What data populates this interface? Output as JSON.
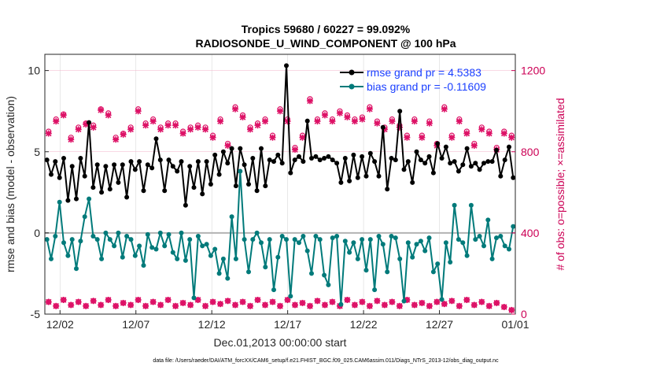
{
  "chart_data": {
    "type": "line",
    "title_line1": "Tropics 59680 / 60227 = 99.092%",
    "title_line2": "RADIOSONDE_U_WIND_COMPONENT @ 100 hPa",
    "xlabel": "Dec.01,2013 00:00:00 start",
    "ylabel": "rmse and bias (model - observation)",
    "ylabel_right": "# of obs: o=possible; ×=assimilated",
    "footer": "data file: /Users/raeder/DAI/ATM_forcXX/CAM6_setup/f.e21.FHIST_BGC.f09_025.CAM6assim.011/Diags_NTrS_2013-12/obs_diag_output.nc",
    "ylim": [
      -5,
      11
    ],
    "ylim_right": [
      0,
      1280
    ],
    "xlim": [
      0,
      62
    ],
    "yticks": [
      -5,
      0,
      5,
      10
    ],
    "yticks_right": [
      0,
      400,
      800,
      1200
    ],
    "xticks": [
      {
        "label": "12/02",
        "x": 2
      },
      {
        "label": "12/07",
        "x": 12
      },
      {
        "label": "12/12",
        "x": 22
      },
      {
        "label": "12/17",
        "x": 32
      },
      {
        "label": "12/22",
        "x": 42
      },
      {
        "label": "12/27",
        "x": 52
      },
      {
        "label": "01/01",
        "x": 62
      }
    ],
    "series": [
      {
        "name": "rmse grand pr = 4.5383",
        "color": "#000000",
        "axis": "left",
        "values": [
          4.5,
          3.6,
          4.4,
          3.4,
          4.6,
          2.0,
          4.1,
          2.1,
          4.6,
          3.5,
          6.8,
          2.8,
          4.2,
          2.5,
          4.1,
          2.7,
          4.2,
          3.1,
          4.2,
          2.2,
          4.4,
          3.9,
          4.4,
          2.6,
          4.2,
          4.0,
          5.8,
          4.5,
          2.6,
          4.5,
          4.1,
          3.8,
          4.4,
          1.7,
          4.1,
          2.8,
          4.4,
          2.4,
          4.4,
          3.0,
          4.8,
          3.6,
          5.0,
          4.3,
          5.2,
          2.9,
          5.2,
          4.2,
          3.0,
          4.6,
          2.6,
          5.2,
          2.9,
          4.5,
          4.4,
          4.8,
          4.3,
          10.3,
          3.7,
          4.5,
          4.7,
          4.4,
          6.9,
          4.6,
          4.7,
          4.5,
          4.6,
          4.7,
          4.5,
          4.3,
          3.1,
          4.6,
          3.2,
          4.8,
          3.4,
          4.7,
          3.5,
          4.9,
          4.4,
          3.5,
          6.5,
          2.7,
          4.6,
          4.5,
          7.5,
          3.9,
          4.4,
          3.1,
          5.0,
          4.5,
          4.3,
          4.7,
          3.7,
          5.5,
          4.6,
          5.3,
          4.3,
          4.4,
          3.8,
          4.2,
          5.2,
          4.1,
          4.3,
          3.9,
          4.3,
          4.4,
          4.4,
          5.1,
          3.5,
          4.5,
          5.3,
          3.4
        ]
      },
      {
        "name": "bias grand pr = -0.11609",
        "color": "#007a7a",
        "axis": "left",
        "values": [
          -0.4,
          -1.6,
          -0.2,
          1.9,
          -0.6,
          -1.4,
          -0.4,
          -2.2,
          -0.5,
          1.0,
          2.1,
          -0.2,
          -0.4,
          -1.6,
          0.0,
          -0.4,
          -0.8,
          0.0,
          -1.5,
          -0.2,
          -0.4,
          -1.4,
          -0.8,
          -2.0,
          -0.1,
          -0.9,
          -1.0,
          0.0,
          -0.8,
          -0.1,
          -1.2,
          -1.6,
          0.0,
          -1.7,
          -0.4,
          -4.0,
          -0.2,
          -0.8,
          -0.7,
          -1.4,
          -1.0,
          -2.5,
          -1.6,
          -2.8,
          1.0,
          -1.6,
          3.8,
          -0.4,
          -2.4,
          -0.4,
          0.0,
          -0.6,
          -2.1,
          -0.4,
          -3.5,
          -1.5,
          -0.2,
          -0.4,
          -3.9,
          -0.4,
          -0.6,
          -0.2,
          -1.1,
          -2.5,
          -0.2,
          -0.4,
          -2.6,
          -3.2,
          -0.3,
          -0.2,
          -4.4,
          -0.5,
          -1.2,
          -0.6,
          -1.6,
          -0.4,
          -2.3,
          -0.4,
          -3.5,
          -0.2,
          -0.7,
          -2.4,
          -0.2,
          -0.3,
          -1.6,
          -4.2,
          -0.6,
          -1.5,
          -0.7,
          -0.5,
          -1.1,
          -0.3,
          -2.4,
          -1.9,
          -4.1,
          -0.6,
          -1.8,
          1.7,
          -0.4,
          -0.6,
          -1.4,
          1.7,
          -0.4,
          -0.2,
          -0.8,
          0.8,
          -1.6,
          -0.3,
          -0.2,
          -0.8,
          -1.0,
          0.4
        ]
      }
    ],
    "obs_possible": [
      900,
      960,
      985,
      870,
      920,
      940,
      930,
      1010,
      990,
      870,
      890,
      920,
      1010,
      940,
      960,
      920,
      940,
      940,
      900,
      920,
      930,
      920,
      880,
      960,
      840,
      1020,
      980,
      920,
      940,
      960,
      880,
      1010,
      960,
      820,
      880,
      1060,
      960,
      990,
      960,
      1000,
      980,
      960,
      970,
      1020,
      950,
      920,
      960,
      930,
      880,
      960,
      880,
      950,
      840,
      1020,
      880,
      960,
      900,
      840,
      920,
      900,
      820,
      900,
      880
    ],
    "obs_assimilated": [
      890,
      950,
      980,
      860,
      910,
      935,
      920,
      1005,
      980,
      860,
      885,
      910,
      1000,
      930,
      950,
      910,
      930,
      930,
      890,
      910,
      920,
      910,
      870,
      950,
      830,
      1010,
      970,
      910,
      930,
      950,
      870,
      1000,
      950,
      810,
      870,
      1050,
      950,
      980,
      950,
      990,
      970,
      950,
      960,
      1010,
      940,
      910,
      950,
      920,
      870,
      950,
      870,
      940,
      830,
      1010,
      870,
      950,
      890,
      830,
      910,
      890,
      810,
      890,
      870
    ],
    "obs_low_possible": [
      60,
      40,
      70,
      45,
      60,
      40,
      65,
      45,
      70,
      40,
      55,
      45,
      70,
      40,
      60,
      45,
      70,
      40,
      55,
      45,
      70,
      40,
      60,
      50,
      65,
      45,
      60,
      40,
      70,
      45,
      60,
      40,
      70,
      45,
      55,
      40,
      65,
      45,
      60,
      40,
      70,
      45,
      60,
      40,
      65,
      45,
      60,
      40,
      70,
      45,
      55,
      40,
      60,
      50,
      65,
      40,
      70,
      45,
      60,
      40,
      55,
      35,
      20
    ],
    "legend_position": "top-right"
  }
}
